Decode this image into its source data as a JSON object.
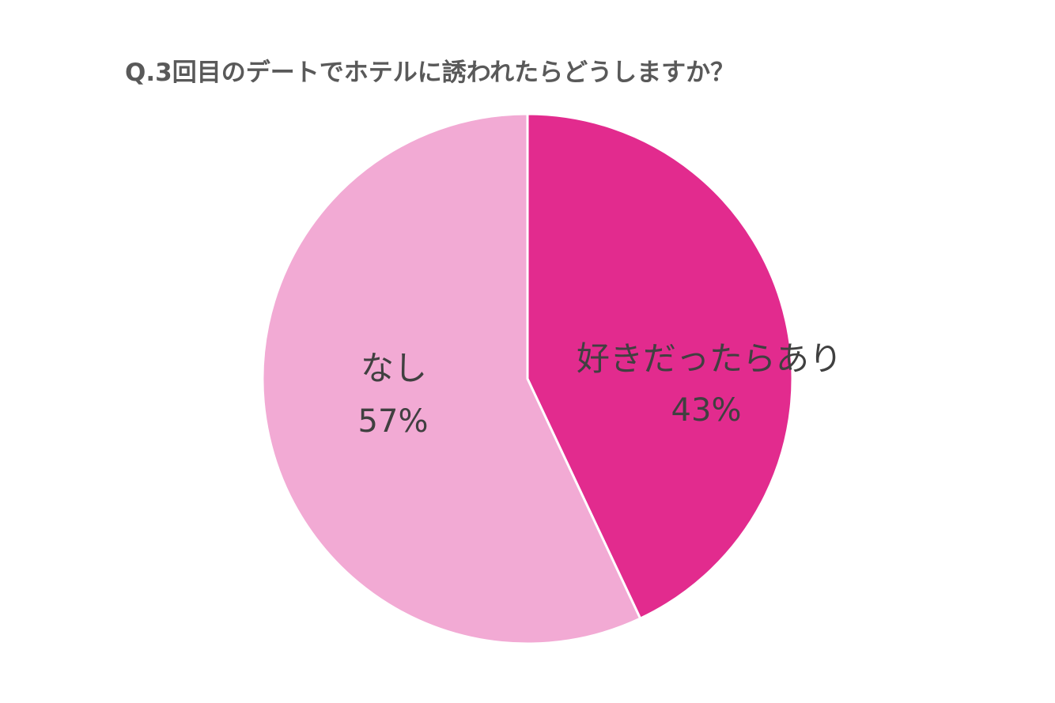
{
  "chart_data": {
    "type": "pie",
    "title": "Q.3回目のデートでホテルに誘われたらどうしますか？",
    "slices": [
      {
        "label": "好きだったらあり",
        "value": 43,
        "value_label": "43%",
        "color": "#e22b8e"
      },
      {
        "label": "なし",
        "value": 57,
        "value_label": "57%",
        "color": "#f2aad4"
      }
    ],
    "start_angle": "12 o'clock",
    "direction": "clockwise",
    "legend": "none"
  }
}
